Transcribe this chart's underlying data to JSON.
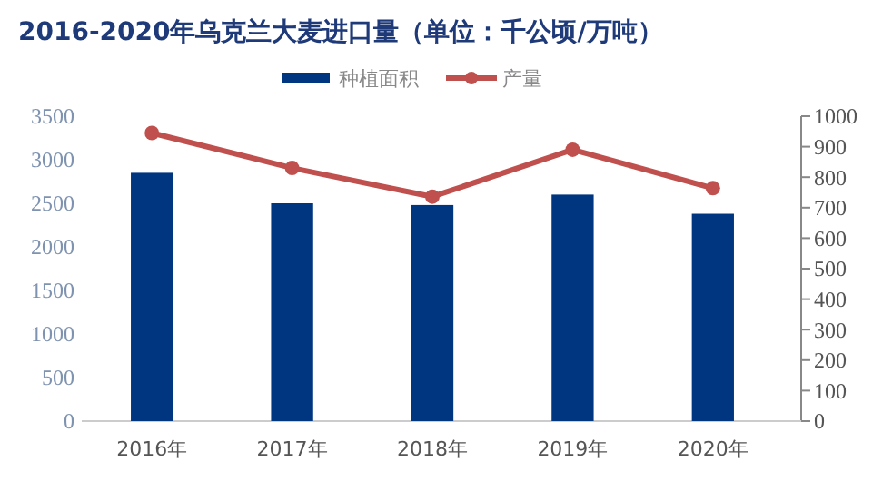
{
  "chart_data": {
    "type": "bar",
    "title": "2016-2020年乌克兰大麦进口量（单位：千公顷/万吨）",
    "categories": [
      "2016年",
      "2017年",
      "2018年",
      "2019年",
      "2020年"
    ],
    "series": [
      {
        "name": "种植面积",
        "color": "#003580",
        "values": [
          2850,
          2500,
          2480,
          2600,
          2380
        ]
      },
      {
        "name": "产量",
        "type": "line",
        "axis": "y2",
        "color": "#c0504d",
        "marker": "circle",
        "values": [
          945,
          830,
          736,
          890,
          764
        ]
      }
    ],
    "ylim": [
      0,
      3500
    ],
    "yticks": [
      0,
      500,
      1000,
      1500,
      2000,
      2500,
      3000,
      3500
    ],
    "y2lim": [
      0,
      1000
    ],
    "y2ticks": [
      0,
      100,
      200,
      300,
      400,
      500,
      600,
      700,
      800,
      900,
      1000
    ],
    "legend": "top",
    "grid": false
  }
}
